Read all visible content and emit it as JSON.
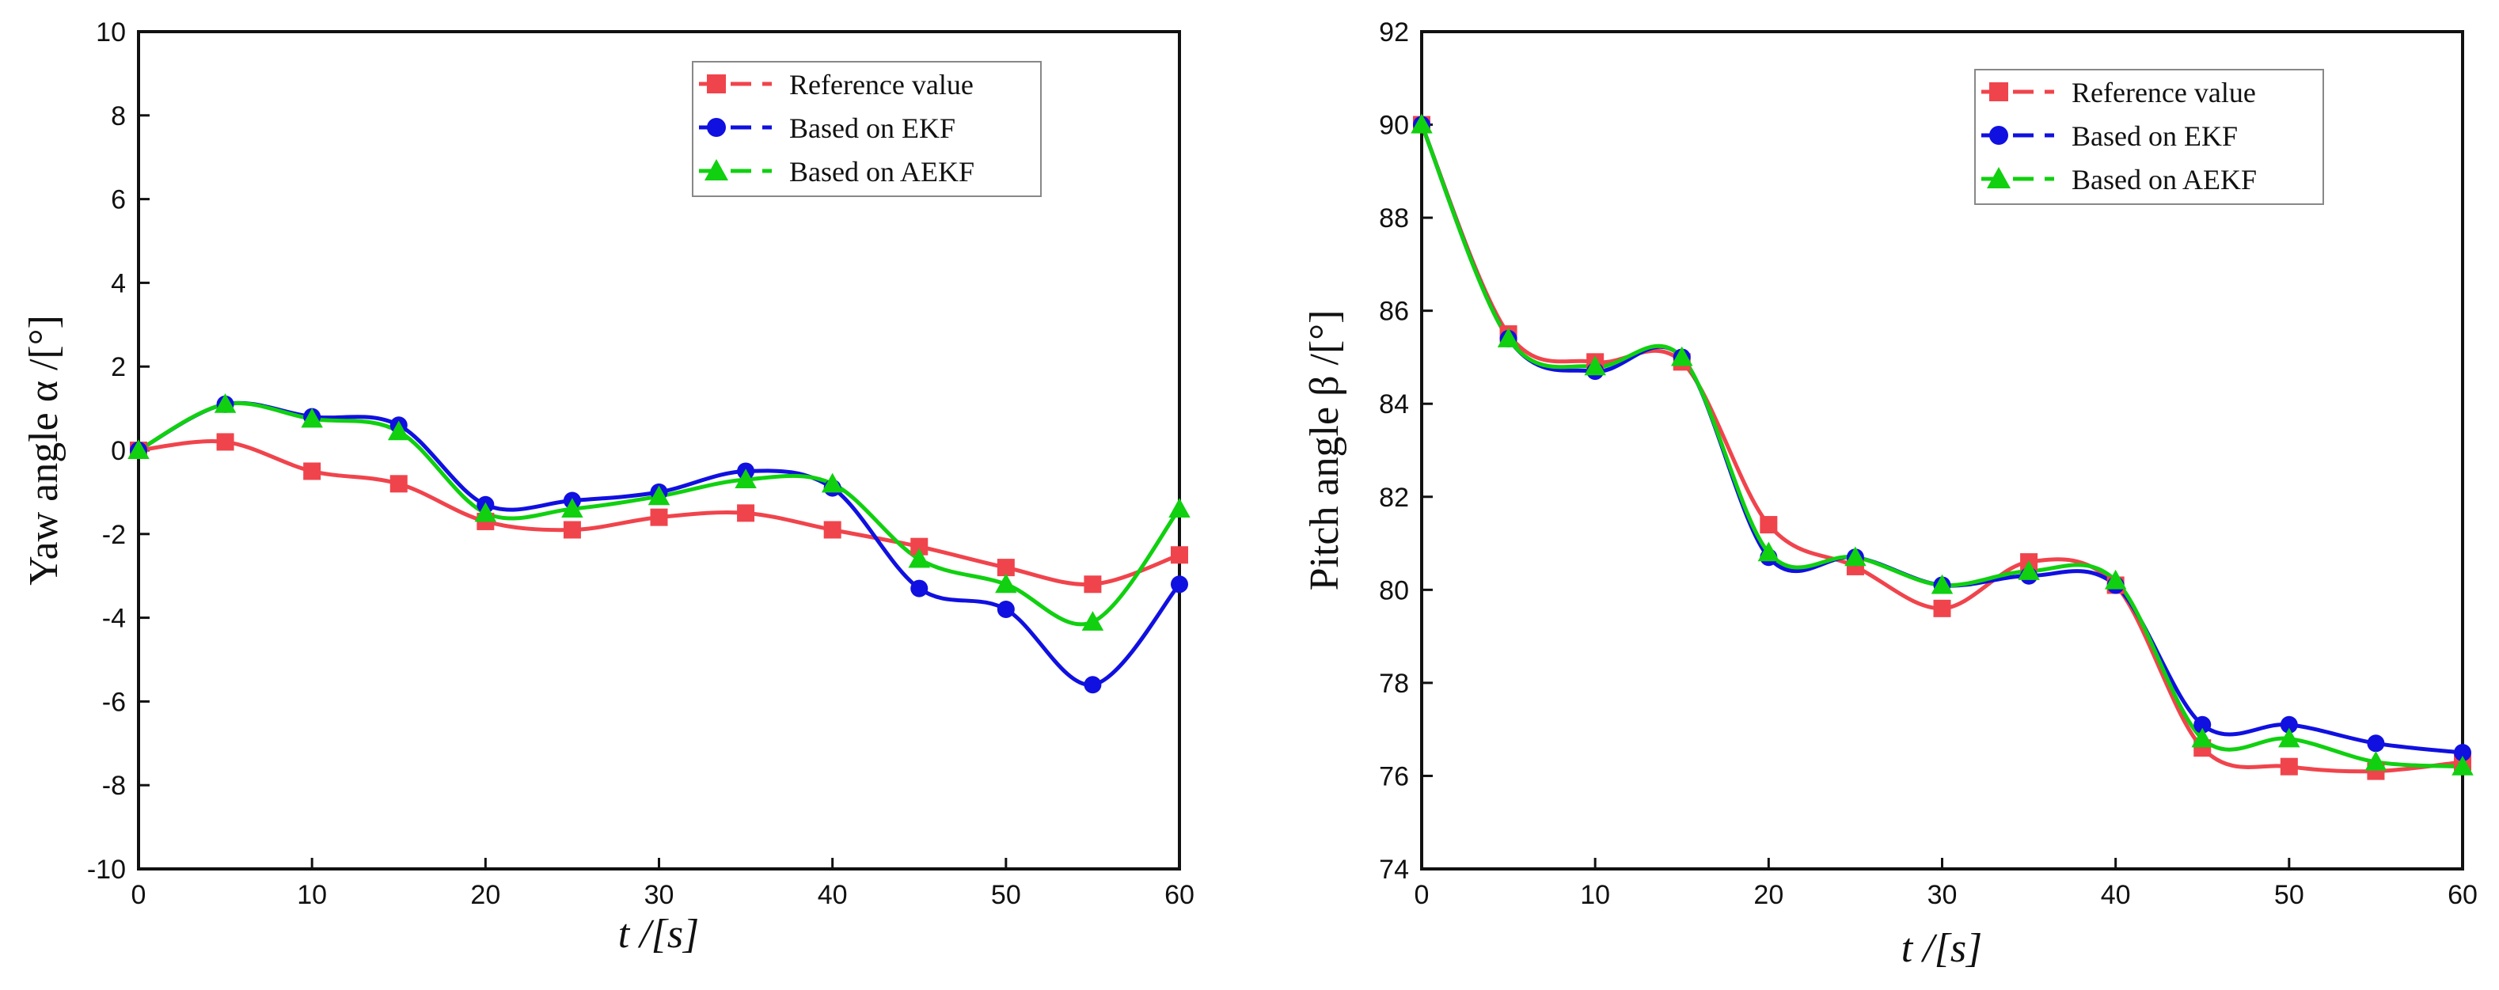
{
  "colors": {
    "reference": "#f0444c",
    "ekf": "#1010e0",
    "aekf": "#10d010",
    "axis": "#111111",
    "background": "#ffffff"
  },
  "chart_data": [
    {
      "type": "line",
      "title": "",
      "xlabel": "t /[s]",
      "ylabel": "Yaw angle α /[°]",
      "xlim": [
        0,
        60
      ],
      "ylim": [
        -10,
        10
      ],
      "xticks": [
        0,
        10,
        20,
        30,
        40,
        50,
        60
      ],
      "yticks": [
        -10,
        -8,
        -6,
        -4,
        -2,
        0,
        2,
        4,
        6,
        8,
        10
      ],
      "grid": false,
      "legend_position": "top-right",
      "x": [
        0,
        5,
        10,
        15,
        20,
        25,
        30,
        35,
        40,
        45,
        50,
        55,
        60
      ],
      "series": [
        {
          "name": "Reference value",
          "marker": "square",
          "color": "#f0444c",
          "values": [
            0,
            0.2,
            -0.5,
            -0.8,
            -1.7,
            -1.9,
            -1.6,
            -1.5,
            -1.9,
            -2.3,
            -2.8,
            -3.2,
            -2.5
          ]
        },
        {
          "name": "Based on EKF",
          "marker": "circle",
          "color": "#1010e0",
          "values": [
            0,
            1.1,
            0.8,
            0.6,
            -1.3,
            -1.2,
            -1.0,
            -0.5,
            -0.9,
            -3.3,
            -3.8,
            -5.6,
            -3.2
          ]
        },
        {
          "name": "Based on AEKF",
          "marker": "triangle",
          "color": "#10d010",
          "values": [
            0,
            1.1,
            0.75,
            0.45,
            -1.5,
            -1.4,
            -1.1,
            -0.7,
            -0.8,
            -2.6,
            -3.2,
            -4.1,
            -1.4
          ]
        }
      ]
    },
    {
      "type": "line",
      "title": "",
      "xlabel": "t /[s]",
      "ylabel": "Pitch angle β /[°]",
      "xlim": [
        0,
        60
      ],
      "ylim": [
        74,
        92
      ],
      "xticks": [
        0,
        10,
        20,
        30,
        40,
        50,
        60
      ],
      "yticks": [
        74,
        76,
        78,
        80,
        82,
        84,
        86,
        88,
        90,
        92
      ],
      "grid": false,
      "legend_position": "top-right",
      "x": [
        0,
        5,
        10,
        15,
        20,
        25,
        30,
        35,
        40,
        45,
        50,
        55,
        60
      ],
      "series": [
        {
          "name": "Reference value",
          "marker": "square",
          "color": "#f0444c",
          "values": [
            90,
            85.5,
            84.9,
            84.9,
            81.4,
            80.5,
            79.6,
            80.6,
            80.1,
            76.6,
            76.2,
            76.1,
            76.3
          ]
        },
        {
          "name": "Based on EKF",
          "marker": "circle",
          "color": "#1010e0",
          "values": [
            90,
            85.4,
            84.7,
            85.0,
            80.7,
            80.7,
            80.1,
            80.3,
            80.1,
            77.1,
            77.1,
            76.7,
            76.5
          ]
        },
        {
          "name": "Based on AEKF",
          "marker": "triangle",
          "color": "#10d010",
          "values": [
            90,
            85.4,
            84.8,
            85.0,
            80.8,
            80.7,
            80.1,
            80.4,
            80.2,
            76.8,
            76.8,
            76.3,
            76.2
          ]
        }
      ]
    }
  ]
}
